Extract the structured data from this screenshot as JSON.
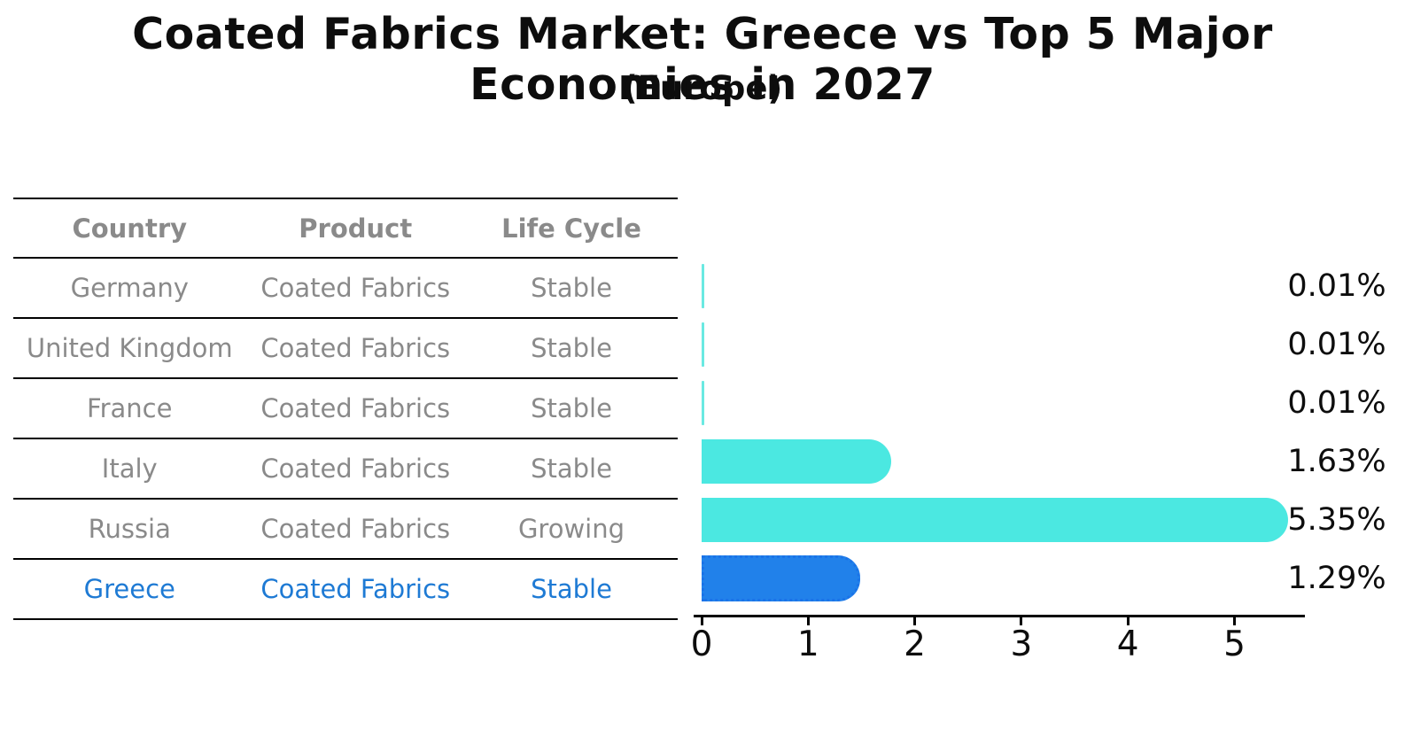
{
  "title": "Coated Fabrics Market: Greece vs Top 5 Major Economies in 2027",
  "subtitle": "(Europe)",
  "table": {
    "headers": {
      "country": "Country",
      "product": "Product",
      "life_cycle": "Life Cycle"
    },
    "rows": [
      {
        "country": "Germany",
        "product": "Coated Fabrics",
        "life_cycle": "Stable",
        "value_label": "0.01%"
      },
      {
        "country": "United Kingdom",
        "product": "Coated Fabrics",
        "life_cycle": "Stable",
        "value_label": "0.01%"
      },
      {
        "country": "France",
        "product": "Coated Fabrics",
        "life_cycle": "Stable",
        "value_label": "0.01%"
      },
      {
        "country": "Italy",
        "product": "Coated Fabrics",
        "life_cycle": "Stable",
        "value_label": "1.63%"
      },
      {
        "country": "Russia",
        "product": "Coated Fabrics",
        "life_cycle": "Growing",
        "value_label": "5.35%"
      },
      {
        "country": "Greece",
        "product": "Coated Fabrics",
        "life_cycle": "Stable",
        "value_label": "1.29%"
      }
    ]
  },
  "chart_data": {
    "type": "bar",
    "orientation": "horizontal",
    "title": "Coated Fabrics Market: Greece vs Top 5 Major Economies in 2027",
    "subtitle": "(Europe)",
    "categories": [
      "Germany",
      "United Kingdom",
      "France",
      "Italy",
      "Russia",
      "Greece"
    ],
    "values": [
      0.01,
      0.01,
      0.01,
      1.63,
      5.35,
      1.29
    ],
    "value_labels": [
      "0.01%",
      "0.01%",
      "0.01%",
      "1.63%",
      "5.35%",
      "1.29%"
    ],
    "x_ticks": [
      0,
      1,
      2,
      3,
      4,
      5
    ],
    "xlim": [
      0,
      5.6
    ],
    "grid": "off",
    "legend": "none",
    "highlight_category": "Greece",
    "bar_color": "#4be8e1",
    "highlight_bar_color": "#2181ea",
    "highlight_text_color": "#1e7ad4",
    "table_text_color": "#8a8a8a",
    "axis_color": "#000000"
  }
}
